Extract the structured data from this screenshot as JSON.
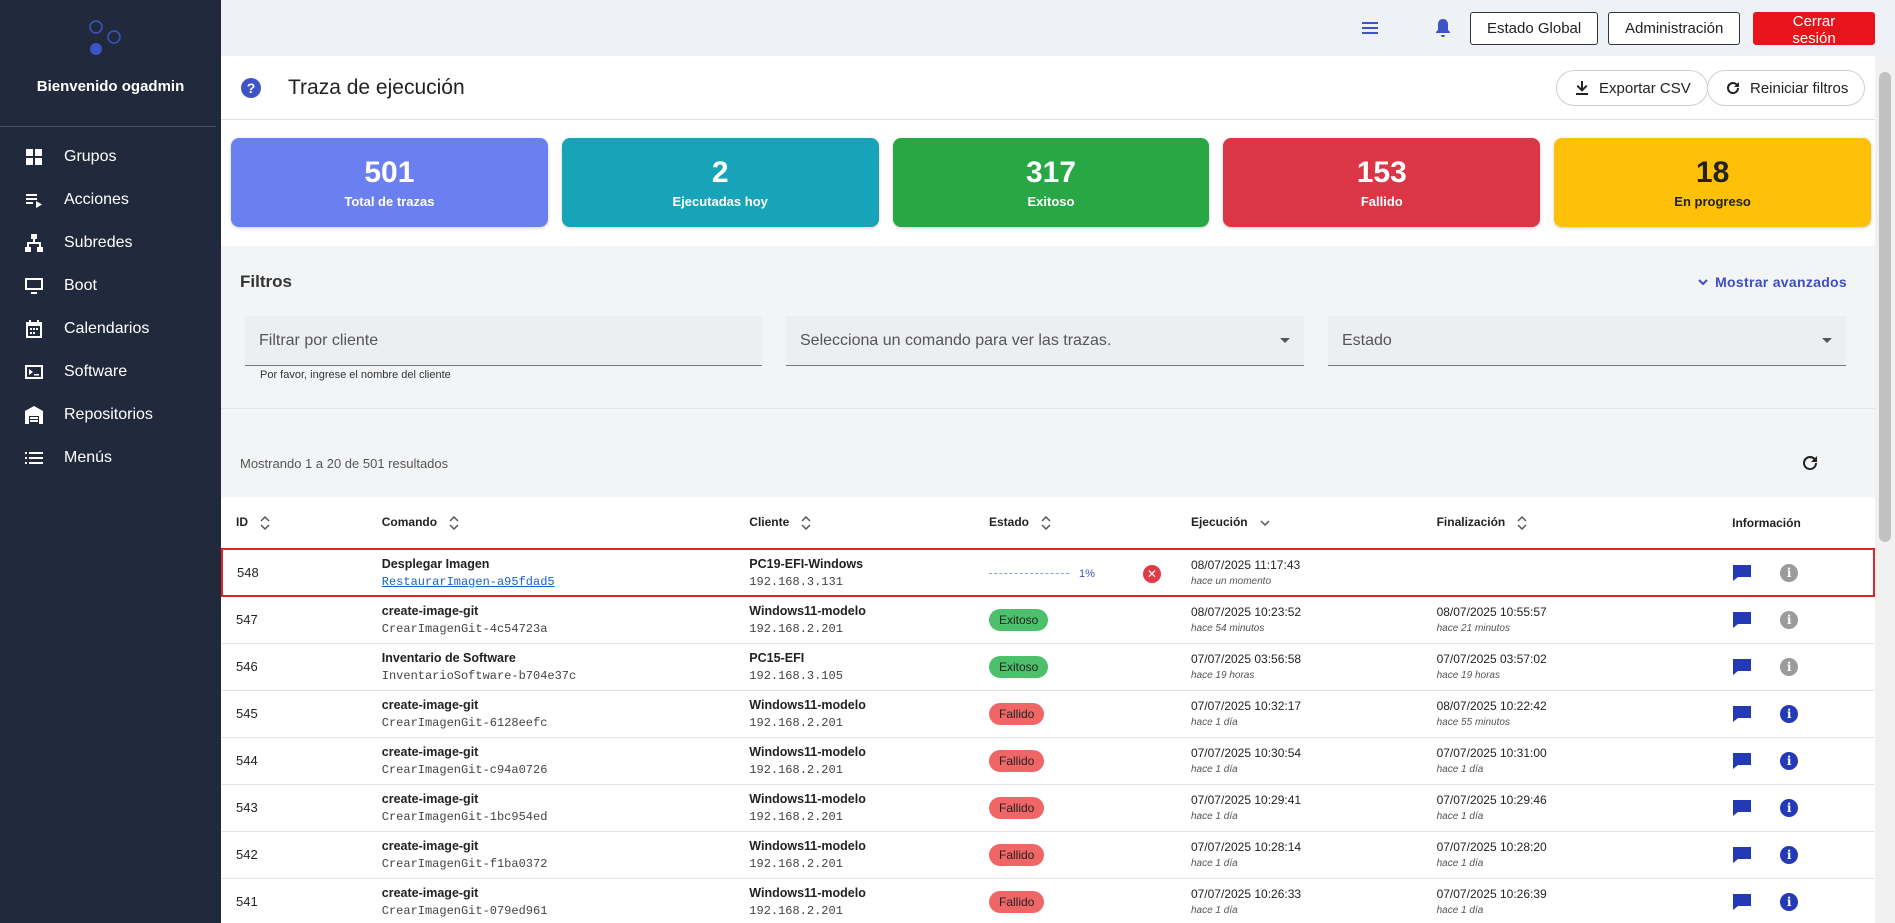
{
  "sidebar": {
    "welcome": "Bienvenido ogadmin",
    "items": [
      {
        "label": "Grupos",
        "icon": "grid-building-icon"
      },
      {
        "label": "Acciones",
        "icon": "list-play-icon"
      },
      {
        "label": "Subredes",
        "icon": "sitemap-icon"
      },
      {
        "label": "Boot",
        "icon": "monitor-icon"
      },
      {
        "label": "Calendarios",
        "icon": "calendar-icon"
      },
      {
        "label": "Software",
        "icon": "terminal-icon"
      },
      {
        "label": "Repositorios",
        "icon": "warehouse-icon"
      },
      {
        "label": "Menús",
        "icon": "menu-list-icon"
      }
    ]
  },
  "topbar": {
    "estado_global": "Estado Global",
    "administracion": "Administración",
    "cerrar_sesion": "Cerrar sesión"
  },
  "page": {
    "title": "Traza de ejecución",
    "export_csv": "Exportar CSV",
    "reset_filters": "Reiniciar filtros"
  },
  "stats": [
    {
      "value": "501",
      "label": "Total de trazas",
      "color": "#6a7ff0"
    },
    {
      "value": "2",
      "label": "Ejecutadas hoy",
      "color": "#17a4b9"
    },
    {
      "value": "317",
      "label": "Exitoso",
      "color": "#28a745"
    },
    {
      "value": "153",
      "label": "Fallido",
      "color": "#dc3545"
    },
    {
      "value": "18",
      "label": "En progreso",
      "color": "#fec107"
    }
  ],
  "filters": {
    "title": "Filtros",
    "advanced": "Mostrar avanzados",
    "client_placeholder": "Filtrar por cliente",
    "client_hint": "Por favor, ingrese el nombre del cliente",
    "command_placeholder": "Selecciona un comando para ver las trazas.",
    "status_placeholder": "Estado"
  },
  "results": {
    "summary": "Mostrando 1 a 20 de 501 resultados"
  },
  "table": {
    "headers": {
      "id": "ID",
      "command": "Comando",
      "client": "Cliente",
      "status": "Estado",
      "execution": "Ejecución",
      "finish": "Finalización",
      "info": "Información"
    },
    "rows": [
      {
        "id": "548",
        "cmd": "Desplegar Imagen",
        "cmd_id": "RestaurarImagen-a95fdad5",
        "client": "PC19-EFI-Windows",
        "ip": "192.168.3.131",
        "status": "",
        "progress": "1%",
        "exec_date": "08/07/2025 11:17:43",
        "exec_rel": "hace un momento",
        "end_date": "",
        "end_rel": ""
      },
      {
        "id": "547",
        "cmd": "create-image-git",
        "cmd_id": "CrearImagenGit-4c54723a",
        "client": "Windows11-modelo",
        "ip": "192.168.2.201",
        "status": "Exitoso",
        "exec_date": "08/07/2025 10:23:52",
        "exec_rel": "hace 54 minutos",
        "end_date": "08/07/2025 10:55:57",
        "end_rel": "hace 21 minutos"
      },
      {
        "id": "546",
        "cmd": "Inventario de Software",
        "cmd_id": "InventarioSoftware-b704e37c",
        "client": "PC15-EFI",
        "ip": "192.168.3.105",
        "status": "Exitoso",
        "exec_date": "07/07/2025 03:56:58",
        "exec_rel": "hace 19 horas",
        "end_date": "07/07/2025 03:57:02",
        "end_rel": "hace 19 horas"
      },
      {
        "id": "545",
        "cmd": "create-image-git",
        "cmd_id": "CrearImagenGit-6128eefc",
        "client": "Windows11-modelo",
        "ip": "192.168.2.201",
        "status": "Fallido",
        "exec_date": "07/07/2025 10:32:17",
        "exec_rel": "hace 1 día",
        "end_date": "08/07/2025 10:22:42",
        "end_rel": "hace 55 minutos"
      },
      {
        "id": "544",
        "cmd": "create-image-git",
        "cmd_id": "CrearImagenGit-c94a0726",
        "client": "Windows11-modelo",
        "ip": "192.168.2.201",
        "status": "Fallido",
        "exec_date": "07/07/2025 10:30:54",
        "exec_rel": "hace 1 día",
        "end_date": "07/07/2025 10:31:00",
        "end_rel": "hace 1 día"
      },
      {
        "id": "543",
        "cmd": "create-image-git",
        "cmd_id": "CrearImagenGit-1bc954ed",
        "client": "Windows11-modelo",
        "ip": "192.168.2.201",
        "status": "Fallido",
        "exec_date": "07/07/2025 10:29:41",
        "exec_rel": "hace 1 día",
        "end_date": "07/07/2025 10:29:46",
        "end_rel": "hace 1 día"
      },
      {
        "id": "542",
        "cmd": "create-image-git",
        "cmd_id": "CrearImagenGit-f1ba0372",
        "client": "Windows11-modelo",
        "ip": "192.168.2.201",
        "status": "Fallido",
        "exec_date": "07/07/2025 10:28:14",
        "exec_rel": "hace 1 día",
        "end_date": "07/07/2025 10:28:20",
        "end_rel": "hace 1 día"
      },
      {
        "id": "541",
        "cmd": "create-image-git",
        "cmd_id": "CrearImagenGit-079ed961",
        "client": "Windows11-modelo",
        "ip": "192.168.2.201",
        "status": "Fallido",
        "exec_date": "07/07/2025 10:26:33",
        "exec_rel": "hace 1 día",
        "end_date": "07/07/2025 10:26:39",
        "end_rel": "hace 1 día"
      }
    ]
  },
  "colors": {
    "sidebar_bg": "#212a3c",
    "accent": "#3d53c6",
    "danger": "#e8141c"
  }
}
